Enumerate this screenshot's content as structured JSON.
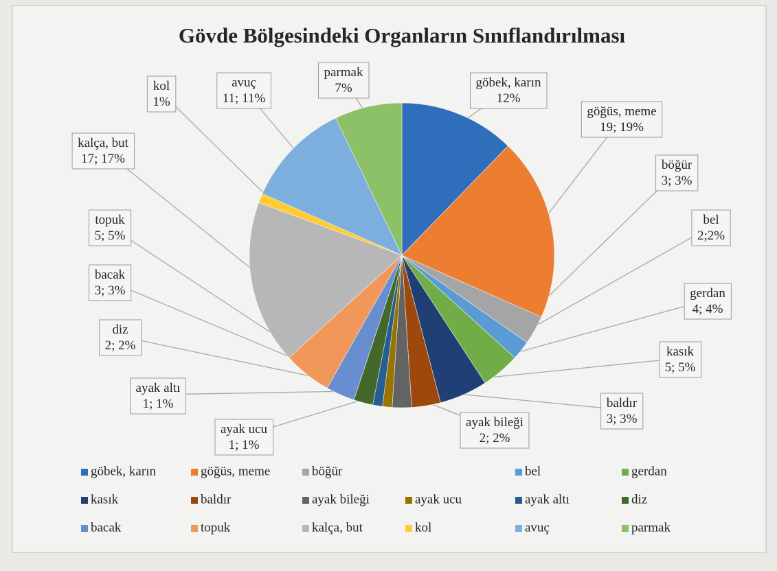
{
  "chart_data": {
    "type": "pie",
    "title": "Gövde Bölgesindeki Organların Sınıflandırılması",
    "categories": [
      "göbek, karın",
      "göğüs, meme",
      "böğür",
      "bel",
      "gerdan",
      "kasık",
      "baldır",
      "ayak bileği",
      "ayak ucu",
      "ayak altı",
      "diz",
      "bacak",
      "topuk",
      "kalça, but",
      "kol",
      "avuç",
      "parmak"
    ],
    "values": [
      12,
      19,
      3,
      2,
      4,
      5,
      3,
      2,
      1,
      1,
      2,
      3,
      5,
      17,
      1,
      11,
      7
    ],
    "value_labels": [
      "12%",
      "19; 19%",
      "3; 3%",
      "2;2%",
      "4; 4%",
      "5; 5%",
      "3; 3%",
      "2; 2%",
      "1; 1%",
      "1; 1%",
      "2; 2%",
      "3; 3%",
      "5; 5%",
      "17; 17%",
      "1%",
      "11; 11%",
      "7%"
    ],
    "colors": [
      "#2f6eba",
      "#ed7d31",
      "#a5a5a5",
      "#5b9bd5",
      "#70ad47",
      "#1f3f75",
      "#9e480e",
      "#636363",
      "#997300",
      "#255e91",
      "#43682b",
      "#698ed0",
      "#f1975a",
      "#b7b7b7",
      "#ffcd33",
      "#7cafdd",
      "#8cc168"
    ],
    "legend": "bottom"
  }
}
